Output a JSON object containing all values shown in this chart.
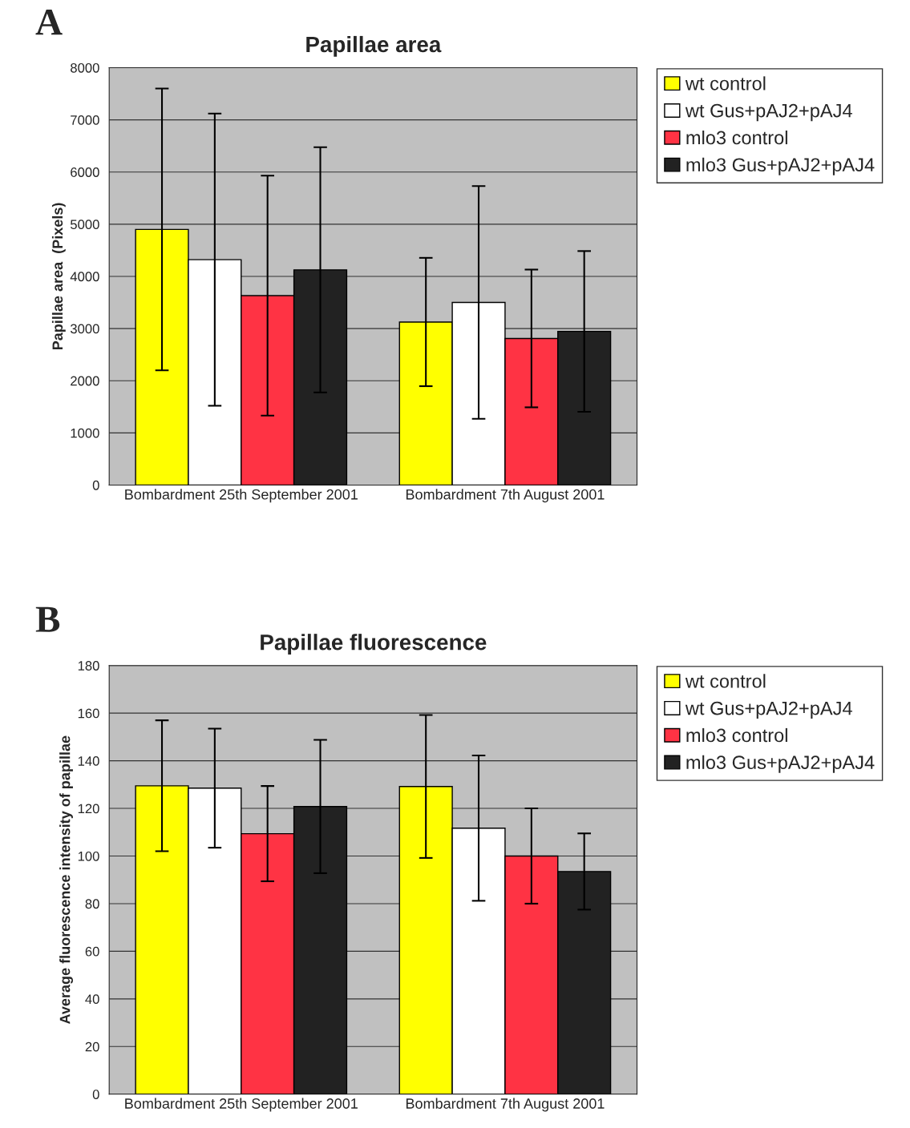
{
  "chart_data": [
    {
      "type": "bar",
      "title": "Papillae area",
      "ylabel": "Papillae area  (Pixels)",
      "annotations": [
        "A"
      ],
      "categories": [
        "Bombardment 25th September 2001",
        "Bombardment 7th August 2001"
      ],
      "ylim": [
        0,
        8000
      ],
      "yticks": [
        0,
        1000,
        2000,
        3000,
        4000,
        5000,
        6000,
        7000,
        8000
      ],
      "grid": "y",
      "legend": "top right",
      "series": [
        {
          "name": "wt control",
          "color": "#ffff00",
          "values": [
            4900,
            3125
          ],
          "errors": [
            2700,
            1230
          ]
        },
        {
          "name": "wt Gus+pAJ2+pAJ4",
          "color": "#ffffff",
          "values": [
            4320,
            3500
          ],
          "errors": [
            2800,
            2230
          ]
        },
        {
          "name": "mlo3 control",
          "color": "#ff3344",
          "values": [
            3630,
            2810
          ],
          "errors": [
            2300,
            1320
          ]
        },
        {
          "name": "mlo3 Gus+pAJ2+pAJ4",
          "color": "#222222",
          "values": [
            4125,
            2945
          ],
          "errors": [
            2350,
            1540
          ]
        }
      ]
    },
    {
      "type": "bar",
      "title": "Papillae fluorescence",
      "ylabel": "Average fluorescence intensity of papillae",
      "annotations": [
        "B"
      ],
      "categories": [
        "Bombardment 25th September 2001",
        "Bombardment 7th August 2001"
      ],
      "ylim": [
        0,
        180
      ],
      "yticks": [
        0,
        20,
        40,
        60,
        80,
        100,
        120,
        140,
        160,
        180
      ],
      "grid": "y",
      "legend": "top right",
      "series": [
        {
          "name": "wt control",
          "color": "#ffff00",
          "values": [
            129.5,
            129.2
          ],
          "errors": [
            27.5,
            30
          ]
        },
        {
          "name": "wt Gus+pAJ2+pAJ4",
          "color": "#ffffff",
          "values": [
            128.5,
            111.7
          ],
          "errors": [
            25,
            30.5
          ]
        },
        {
          "name": "mlo3 control",
          "color": "#ff3344",
          "values": [
            109.4,
            100
          ],
          "errors": [
            20,
            20
          ]
        },
        {
          "name": "mlo3 Gus+pAJ2+pAJ4",
          "color": "#222222",
          "values": [
            120.8,
            93.5
          ],
          "errors": [
            28,
            16
          ]
        }
      ]
    }
  ]
}
